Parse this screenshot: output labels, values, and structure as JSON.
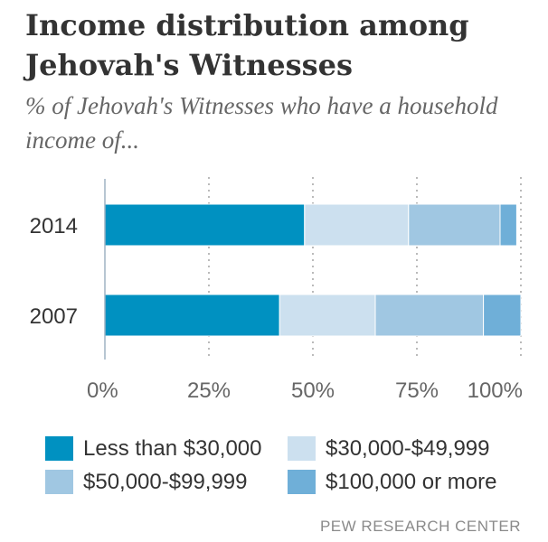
{
  "title": "Income distribution among Jehovah's Witnesses",
  "subtitle": "% of Jehovah's Witnesses who have a household income of...",
  "source": "PEW RESEARCH CENTER",
  "chart_data": {
    "type": "bar",
    "orientation": "horizontal",
    "stacked": true,
    "categories": [
      "2014",
      "2007"
    ],
    "series": [
      {
        "name": "Less than $30,000",
        "values": [
          48,
          42
        ],
        "color": "#0091C1"
      },
      {
        "name": "$30,000-$49,999",
        "values": [
          25,
          23
        ],
        "color": "#CCE0EF"
      },
      {
        "name": "$50,000-$99,999",
        "values": [
          22,
          26
        ],
        "color": "#A0C7E2"
      },
      {
        "name": "$100,000 or more",
        "values": [
          4,
          9
        ],
        "color": "#6FAFD8"
      }
    ],
    "xlim": [
      0,
      100
    ],
    "xticks": [
      0,
      25,
      50,
      75,
      100
    ],
    "xtick_labels": [
      "0%",
      "25%",
      "50%",
      "75%",
      "100%"
    ],
    "xlabel": "",
    "ylabel": "",
    "grid": "vertical-dotted",
    "legend_position": "bottom"
  }
}
